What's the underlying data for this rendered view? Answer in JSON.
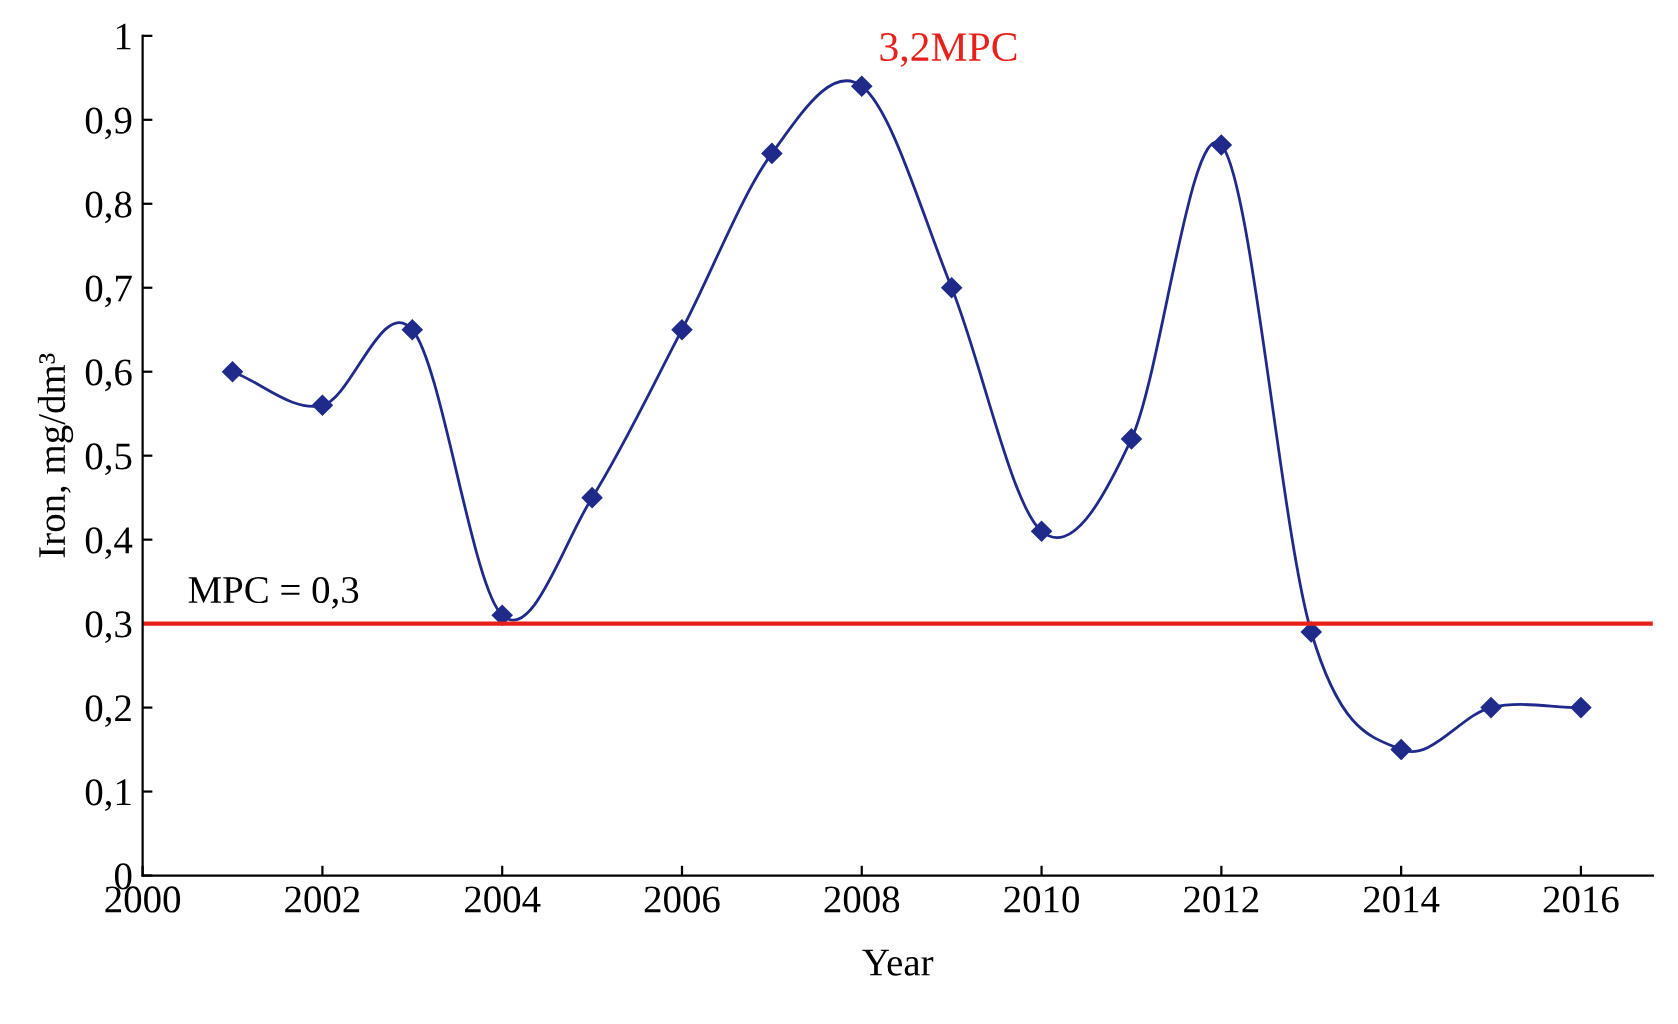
{
  "chart_data": {
    "type": "line",
    "xlabel": "Year",
    "ylabel": "Iron, mg/dm³",
    "x": [
      2001,
      2002,
      2003,
      2004,
      2005,
      2006,
      2007,
      2008,
      2009,
      2010,
      2011,
      2012,
      2013,
      2014,
      2015,
      2016
    ],
    "series": [
      {
        "color": "#1f2a8a",
        "values": [
          0.6,
          0.56,
          0.65,
          0.31,
          0.45,
          0.65,
          0.86,
          0.94,
          0.7,
          0.41,
          0.52,
          0.87,
          0.29,
          0.15,
          0.2,
          0.2
        ]
      }
    ],
    "marker": "diamond",
    "line_style": "solid",
    "grid": false,
    "xlim": [
      2000,
      2016.8
    ],
    "xticks": [
      2000,
      2002,
      2004,
      2006,
      2008,
      2010,
      2012,
      2014,
      2016
    ],
    "ylim": [
      0,
      1
    ],
    "yticks": [
      0,
      {
        "value": 0.1,
        "label": "0,1"
      },
      {
        "value": 0.2,
        "label": "0,2"
      },
      {
        "value": 0.3,
        "label": "0,3"
      },
      {
        "value": 0.4,
        "label": "0,4"
      },
      {
        "value": 0.5,
        "label": "0,5"
      },
      {
        "value": 0.6,
        "label": "0,6"
      },
      {
        "value": 0.7,
        "label": "0,7"
      },
      {
        "value": 0.8,
        "label": "0,8"
      },
      {
        "value": 0.9,
        "label": "0,9"
      },
      1
    ],
    "ref_lines": [
      {
        "axis": "y",
        "value": 0.3,
        "label": "MPC = 0,3",
        "color": "#e8201a",
        "line_style": "solid"
      }
    ],
    "annotations": [
      {
        "text": "3,2MPC",
        "x": 2008,
        "y": 0.94
      }
    ]
  }
}
